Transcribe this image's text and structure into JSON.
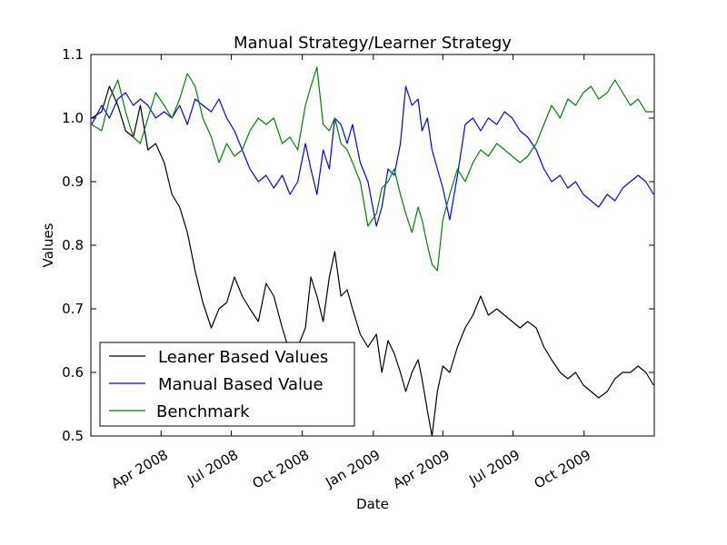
{
  "chart_data": {
    "type": "line",
    "title": "Manual Strategy/Learner Strategy",
    "xlabel": "Date",
    "ylabel": "Values",
    "xlim": [
      "2008-01-01",
      "2009-12-31"
    ],
    "ylim": [
      0.5,
      1.1
    ],
    "xticks": [
      "2008-04-01",
      "2008-07-01",
      "2008-10-01",
      "2009-01-01",
      "2009-04-01",
      "2009-07-01",
      "2009-10-01"
    ],
    "xtick_labels": [
      "Apr 2008",
      "Jul 2008",
      "Oct 2008",
      "Jan 2009",
      "Apr 2009",
      "Jul 2009",
      "Oct 2009"
    ],
    "yticks": [
      0.5,
      0.6,
      0.7,
      0.8,
      0.9,
      1.0,
      1.1
    ],
    "ytick_labels": [
      "0.5",
      "0.6",
      "0.7",
      "0.8",
      "0.9",
      "1.0",
      "1.1"
    ],
    "legend_position": "lower-left",
    "grid": false,
    "series": [
      {
        "name": "Leaner Based Values",
        "color": "#000000",
        "points": [
          [
            "2008-01-02",
            1.0
          ],
          [
            "2008-01-15",
            1.01
          ],
          [
            "2008-01-25",
            1.05
          ],
          [
            "2008-02-05",
            1.02
          ],
          [
            "2008-02-15",
            0.98
          ],
          [
            "2008-02-25",
            0.97
          ],
          [
            "2008-03-05",
            1.02
          ],
          [
            "2008-03-15",
            0.95
          ],
          [
            "2008-03-25",
            0.96
          ],
          [
            "2008-04-05",
            0.93
          ],
          [
            "2008-04-15",
            0.88
          ],
          [
            "2008-04-25",
            0.86
          ],
          [
            "2008-05-05",
            0.82
          ],
          [
            "2008-05-15",
            0.76
          ],
          [
            "2008-05-25",
            0.71
          ],
          [
            "2008-06-05",
            0.67
          ],
          [
            "2008-06-15",
            0.7
          ],
          [
            "2008-06-25",
            0.71
          ],
          [
            "2008-07-05",
            0.75
          ],
          [
            "2008-07-15",
            0.72
          ],
          [
            "2008-07-25",
            0.7
          ],
          [
            "2008-08-05",
            0.68
          ],
          [
            "2008-08-15",
            0.74
          ],
          [
            "2008-08-25",
            0.72
          ],
          [
            "2008-09-05",
            0.67
          ],
          [
            "2008-09-15",
            0.63
          ],
          [
            "2008-09-25",
            0.64
          ],
          [
            "2008-10-05",
            0.67
          ],
          [
            "2008-10-12",
            0.75
          ],
          [
            "2008-10-20",
            0.72
          ],
          [
            "2008-10-28",
            0.68
          ],
          [
            "2008-11-05",
            0.75
          ],
          [
            "2008-11-12",
            0.79
          ],
          [
            "2008-11-20",
            0.72
          ],
          [
            "2008-11-28",
            0.73
          ],
          [
            "2008-12-05",
            0.7
          ],
          [
            "2008-12-15",
            0.66
          ],
          [
            "2008-12-25",
            0.64
          ],
          [
            "2009-01-05",
            0.66
          ],
          [
            "2009-01-12",
            0.6
          ],
          [
            "2009-01-20",
            0.65
          ],
          [
            "2009-01-28",
            0.63
          ],
          [
            "2009-02-05",
            0.6
          ],
          [
            "2009-02-12",
            0.57
          ],
          [
            "2009-02-20",
            0.6
          ],
          [
            "2009-02-28",
            0.62
          ],
          [
            "2009-03-05",
            0.59
          ],
          [
            "2009-03-12",
            0.54
          ],
          [
            "2009-03-18",
            0.5
          ],
          [
            "2009-03-25",
            0.57
          ],
          [
            "2009-04-01",
            0.61
          ],
          [
            "2009-04-10",
            0.6
          ],
          [
            "2009-04-20",
            0.64
          ],
          [
            "2009-04-30",
            0.67
          ],
          [
            "2009-05-10",
            0.69
          ],
          [
            "2009-05-20",
            0.72
          ],
          [
            "2009-05-30",
            0.69
          ],
          [
            "2009-06-10",
            0.7
          ],
          [
            "2009-06-20",
            0.69
          ],
          [
            "2009-06-30",
            0.68
          ],
          [
            "2009-07-10",
            0.67
          ],
          [
            "2009-07-20",
            0.68
          ],
          [
            "2009-07-31",
            0.67
          ],
          [
            "2009-08-10",
            0.64
          ],
          [
            "2009-08-20",
            0.62
          ],
          [
            "2009-08-31",
            0.6
          ],
          [
            "2009-09-10",
            0.59
          ],
          [
            "2009-09-20",
            0.6
          ],
          [
            "2009-09-30",
            0.58
          ],
          [
            "2009-10-10",
            0.57
          ],
          [
            "2009-10-20",
            0.56
          ],
          [
            "2009-10-31",
            0.57
          ],
          [
            "2009-11-10",
            0.59
          ],
          [
            "2009-11-20",
            0.6
          ],
          [
            "2009-11-30",
            0.6
          ],
          [
            "2009-12-10",
            0.61
          ],
          [
            "2009-12-20",
            0.6
          ],
          [
            "2009-12-30",
            0.58
          ]
        ]
      },
      {
        "name": "Manual Based Value",
        "color": "#0000ff",
        "points": [
          [
            "2008-01-02",
            0.99
          ],
          [
            "2008-01-15",
            1.02
          ],
          [
            "2008-01-25",
            1.0
          ],
          [
            "2008-02-05",
            1.03
          ],
          [
            "2008-02-15",
            1.04
          ],
          [
            "2008-02-25",
            1.02
          ],
          [
            "2008-03-05",
            1.03
          ],
          [
            "2008-03-15",
            1.02
          ],
          [
            "2008-03-25",
            1.0
          ],
          [
            "2008-04-05",
            1.01
          ],
          [
            "2008-04-15",
            1.0
          ],
          [
            "2008-04-25",
            1.02
          ],
          [
            "2008-05-05",
            0.99
          ],
          [
            "2008-05-15",
            1.03
          ],
          [
            "2008-05-25",
            1.02
          ],
          [
            "2008-06-05",
            1.01
          ],
          [
            "2008-06-15",
            1.03
          ],
          [
            "2008-06-25",
            1.0
          ],
          [
            "2008-07-05",
            0.98
          ],
          [
            "2008-07-15",
            0.95
          ],
          [
            "2008-07-25",
            0.92
          ],
          [
            "2008-08-05",
            0.9
          ],
          [
            "2008-08-15",
            0.91
          ],
          [
            "2008-08-25",
            0.89
          ],
          [
            "2008-09-05",
            0.91
          ],
          [
            "2008-09-15",
            0.88
          ],
          [
            "2008-09-25",
            0.9
          ],
          [
            "2008-10-05",
            0.96
          ],
          [
            "2008-10-12",
            0.92
          ],
          [
            "2008-10-20",
            0.88
          ],
          [
            "2008-10-28",
            0.95
          ],
          [
            "2008-11-05",
            0.92
          ],
          [
            "2008-11-12",
            1.0
          ],
          [
            "2008-11-20",
            0.99
          ],
          [
            "2008-11-28",
            0.96
          ],
          [
            "2008-12-05",
            0.99
          ],
          [
            "2008-12-15",
            0.93
          ],
          [
            "2008-12-25",
            0.9
          ],
          [
            "2009-01-05",
            0.83
          ],
          [
            "2009-01-12",
            0.86
          ],
          [
            "2009-01-20",
            0.92
          ],
          [
            "2009-01-28",
            0.91
          ],
          [
            "2009-02-05",
            0.96
          ],
          [
            "2009-02-12",
            1.05
          ],
          [
            "2009-02-20",
            1.02
          ],
          [
            "2009-02-28",
            1.03
          ],
          [
            "2009-03-05",
            0.98
          ],
          [
            "2009-03-12",
            1.0
          ],
          [
            "2009-03-18",
            0.95
          ],
          [
            "2009-03-25",
            0.92
          ],
          [
            "2009-04-01",
            0.89
          ],
          [
            "2009-04-10",
            0.84
          ],
          [
            "2009-04-20",
            0.91
          ],
          [
            "2009-04-30",
            0.99
          ],
          [
            "2009-05-10",
            1.0
          ],
          [
            "2009-05-20",
            0.98
          ],
          [
            "2009-05-30",
            1.0
          ],
          [
            "2009-06-10",
            0.99
          ],
          [
            "2009-06-20",
            1.01
          ],
          [
            "2009-06-30",
            1.0
          ],
          [
            "2009-07-10",
            0.98
          ],
          [
            "2009-07-20",
            0.97
          ],
          [
            "2009-07-31",
            0.95
          ],
          [
            "2009-08-10",
            0.92
          ],
          [
            "2009-08-20",
            0.9
          ],
          [
            "2009-08-31",
            0.91
          ],
          [
            "2009-09-10",
            0.89
          ],
          [
            "2009-09-20",
            0.9
          ],
          [
            "2009-09-30",
            0.88
          ],
          [
            "2009-10-10",
            0.87
          ],
          [
            "2009-10-20",
            0.86
          ],
          [
            "2009-10-31",
            0.88
          ],
          [
            "2009-11-10",
            0.87
          ],
          [
            "2009-11-20",
            0.89
          ],
          [
            "2009-11-30",
            0.9
          ],
          [
            "2009-12-10",
            0.91
          ],
          [
            "2009-12-20",
            0.9
          ],
          [
            "2009-12-30",
            0.88
          ]
        ]
      },
      {
        "name": "Benchmark",
        "color": "#008000",
        "points": [
          [
            "2008-01-02",
            0.99
          ],
          [
            "2008-01-15",
            0.98
          ],
          [
            "2008-01-25",
            1.03
          ],
          [
            "2008-02-05",
            1.06
          ],
          [
            "2008-02-15",
            1.01
          ],
          [
            "2008-02-25",
            0.97
          ],
          [
            "2008-03-05",
            0.96
          ],
          [
            "2008-03-15",
            1.0
          ],
          [
            "2008-03-25",
            1.04
          ],
          [
            "2008-04-05",
            1.02
          ],
          [
            "2008-04-15",
            1.0
          ],
          [
            "2008-04-25",
            1.03
          ],
          [
            "2008-05-05",
            1.07
          ],
          [
            "2008-05-15",
            1.05
          ],
          [
            "2008-05-25",
            1.0
          ],
          [
            "2008-06-05",
            0.97
          ],
          [
            "2008-06-15",
            0.93
          ],
          [
            "2008-06-25",
            0.96
          ],
          [
            "2008-07-05",
            0.94
          ],
          [
            "2008-07-15",
            0.95
          ],
          [
            "2008-07-25",
            0.98
          ],
          [
            "2008-08-05",
            1.0
          ],
          [
            "2008-08-15",
            0.99
          ],
          [
            "2008-08-25",
            1.0
          ],
          [
            "2008-09-05",
            0.96
          ],
          [
            "2008-09-15",
            0.97
          ],
          [
            "2008-09-25",
            0.95
          ],
          [
            "2008-10-05",
            1.02
          ],
          [
            "2008-10-12",
            1.05
          ],
          [
            "2008-10-20",
            1.08
          ],
          [
            "2008-10-28",
            0.99
          ],
          [
            "2008-11-05",
            0.98
          ],
          [
            "2008-11-12",
            1.0
          ],
          [
            "2008-11-20",
            0.96
          ],
          [
            "2008-11-28",
            0.95
          ],
          [
            "2008-12-05",
            0.93
          ],
          [
            "2008-12-15",
            0.9
          ],
          [
            "2008-12-25",
            0.83
          ],
          [
            "2009-01-05",
            0.85
          ],
          [
            "2009-01-12",
            0.89
          ],
          [
            "2009-01-20",
            0.9
          ],
          [
            "2009-01-28",
            0.92
          ],
          [
            "2009-02-05",
            0.88
          ],
          [
            "2009-02-12",
            0.85
          ],
          [
            "2009-02-20",
            0.82
          ],
          [
            "2009-02-28",
            0.86
          ],
          [
            "2009-03-05",
            0.84
          ],
          [
            "2009-03-12",
            0.8
          ],
          [
            "2009-03-18",
            0.77
          ],
          [
            "2009-03-25",
            0.76
          ],
          [
            "2009-04-01",
            0.84
          ],
          [
            "2009-04-10",
            0.88
          ],
          [
            "2009-04-20",
            0.92
          ],
          [
            "2009-04-30",
            0.9
          ],
          [
            "2009-05-10",
            0.93
          ],
          [
            "2009-05-20",
            0.95
          ],
          [
            "2009-05-30",
            0.94
          ],
          [
            "2009-06-10",
            0.96
          ],
          [
            "2009-06-20",
            0.95
          ],
          [
            "2009-06-30",
            0.94
          ],
          [
            "2009-07-10",
            0.93
          ],
          [
            "2009-07-20",
            0.94
          ],
          [
            "2009-07-31",
            0.96
          ],
          [
            "2009-08-10",
            0.99
          ],
          [
            "2009-08-20",
            1.02
          ],
          [
            "2009-08-31",
            1.0
          ],
          [
            "2009-09-10",
            1.03
          ],
          [
            "2009-09-20",
            1.02
          ],
          [
            "2009-09-30",
            1.04
          ],
          [
            "2009-10-10",
            1.05
          ],
          [
            "2009-10-20",
            1.03
          ],
          [
            "2009-10-31",
            1.04
          ],
          [
            "2009-11-10",
            1.06
          ],
          [
            "2009-11-20",
            1.04
          ],
          [
            "2009-11-30",
            1.02
          ],
          [
            "2009-12-10",
            1.03
          ],
          [
            "2009-12-20",
            1.01
          ],
          [
            "2009-12-30",
            1.01
          ]
        ]
      }
    ]
  }
}
